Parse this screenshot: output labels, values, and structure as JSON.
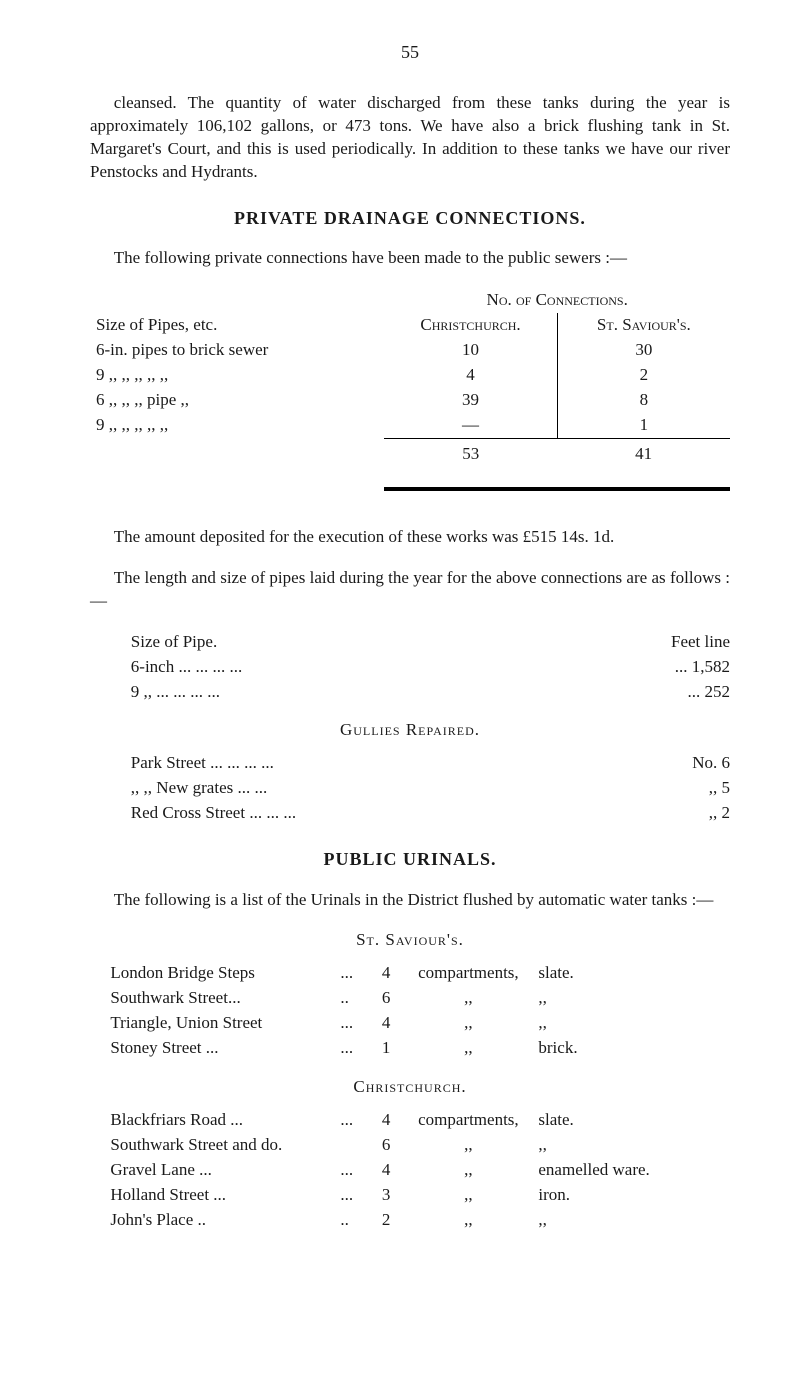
{
  "page_number": "55",
  "intro_para": "cleansed. The quantity of water discharged from these tanks during the year is approximately 106,102 gallons, or 473 tons. We have also a brick flushing tank in St. Margaret's Court, and this is used periodically. In addition to these tanks we have our river Penstocks and Hydrants.",
  "heading_private": "PRIVATE DRAINAGE CONNECTIONS.",
  "private_para": "The following private connections have been made to the public sewers :—",
  "conn": {
    "no_of_conn": "No. of Connections.",
    "size_head": "Size of Pipes, etc.",
    "col1": "Christchurch.",
    "col2": "St. Saviour's.",
    "rows": [
      {
        "label": "6-in. pipes to brick sewer",
        "c1": "10",
        "c2": "30"
      },
      {
        "label": "9 ,,    ,,    ,,    ,,        ,,",
        "c1": "4",
        "c2": "2"
      },
      {
        "label": "6 ,,    ,,    ,,  pipe    ,,",
        "c1": "39",
        "c2": "8"
      },
      {
        "label": "9 ,,    ,,    ,,    ,,        ,,",
        "c1": "—",
        "c2": "1"
      }
    ],
    "total": {
      "c1": "53",
      "c2": "41"
    }
  },
  "deposit_para": "The amount deposited for the execution of these works was £515 14s. 1d.",
  "length_para": "The length and size of pipes laid during the year for the above connections are as follows :—",
  "pipes": {
    "size_head": "Size of Pipe.",
    "feet_head": "Feet line",
    "rows": [
      {
        "label": "6-inch ...    ...    ...    ...",
        "val": "... 1,582"
      },
      {
        "label": "9  ,,    ...    ...    ...    ...",
        "val": "...   252"
      }
    ]
  },
  "gullies_head": "Gullies Repaired.",
  "gullies": [
    {
      "label": "Park Street   ...    ...    ...    ...",
      "val": "No. 6"
    },
    {
      "label": ",,      ,,    New grates    ...    ...",
      "val": ",,  5"
    },
    {
      "label": "Red Cross Street    ...    ...    ...",
      "val": ",,  2"
    }
  ],
  "heading_urinals": "PUBLIC URINALS.",
  "urinals_para": "The following is a list of the Urinals in the District flushed by automatic water tanks :—",
  "saviours_head": "St. Saviour's.",
  "saviours": [
    {
      "name": "London Bridge Steps",
      "dots": "...",
      "n": "4",
      "word": "compartments,",
      "mat": "slate."
    },
    {
      "name": "Southwark Street...",
      "dots": "..",
      "n": "6",
      "word": ",,",
      "mat": ",,"
    },
    {
      "name": "Triangle, Union Street",
      "dots": "...",
      "n": "4",
      "word": ",,",
      "mat": ",,"
    },
    {
      "name": "Stoney Street    ...",
      "dots": "...",
      "n": "1",
      "word": ",,",
      "mat": "brick."
    }
  ],
  "christ_head": "Christchurch.",
  "christ": [
    {
      "name": "Blackfriars Road ...",
      "dots": "...",
      "n": "4",
      "word": "compartments,",
      "mat": "slate."
    },
    {
      "name": "Southwark Street and do.",
      "dots": "",
      "n": "6",
      "word": ",,",
      "mat": ",,"
    },
    {
      "name": "Gravel Lane      ...",
      "dots": "...",
      "n": "4",
      "word": ",,",
      "mat": "enamelled ware."
    },
    {
      "name": "Holland Street   ...",
      "dots": "...",
      "n": "3",
      "word": ",,",
      "mat": "iron."
    },
    {
      "name": "John's Place     ..",
      "dots": "..",
      "n": "2",
      "word": ",,",
      "mat": ",,"
    }
  ]
}
